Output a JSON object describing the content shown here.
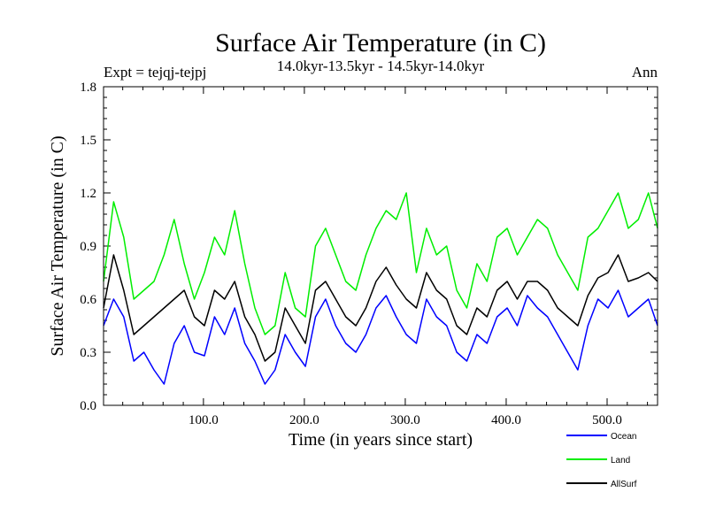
{
  "chart_data": {
    "type": "line",
    "title": "Surface Air Temperature (in C)",
    "subtitle": "14.0kyr-13.5kyr - 14.5kyr-14.0kyr",
    "experiment": "Expt = tejqj-tejpj",
    "period": "Ann",
    "xlabel": "Time (in years since start)",
    "ylabel": "Surface Air Temperature (in C)",
    "xlim": [
      1,
      550
    ],
    "ylim": [
      0.0,
      1.8
    ],
    "x_ticks": [
      100,
      200,
      300,
      400,
      500
    ],
    "x_tick_labels": [
      "100.0",
      "200.0",
      "300.0",
      "400.0",
      "500.0"
    ],
    "y_ticks": [
      0.0,
      0.3,
      0.6,
      0.9,
      1.2,
      1.5,
      1.8
    ],
    "y_tick_labels": [
      "0.0",
      "0.3",
      "0.6",
      "0.9",
      "1.2",
      "1.5",
      "1.8"
    ],
    "x_start": 1,
    "x_step": 10,
    "series": [
      {
        "name": "Ocean",
        "color": "#0000ff",
        "values": [
          0.45,
          0.6,
          0.5,
          0.25,
          0.3,
          0.2,
          0.12,
          0.35,
          0.45,
          0.3,
          0.28,
          0.5,
          0.4,
          0.55,
          0.35,
          0.25,
          0.12,
          0.2,
          0.4,
          0.3,
          0.22,
          0.5,
          0.6,
          0.45,
          0.35,
          0.3,
          0.4,
          0.55,
          0.62,
          0.5,
          0.4,
          0.35,
          0.6,
          0.5,
          0.45,
          0.3,
          0.25,
          0.4,
          0.35,
          0.5,
          0.55,
          0.45,
          0.62,
          0.55,
          0.5,
          0.4,
          0.3,
          0.2,
          0.45,
          0.6,
          0.55,
          0.65,
          0.5,
          0.55,
          0.6,
          0.45
        ]
      },
      {
        "name": "Land",
        "color": "#00ee00",
        "values": [
          0.7,
          1.15,
          0.95,
          0.6,
          0.65,
          0.7,
          0.85,
          1.05,
          0.8,
          0.6,
          0.75,
          0.95,
          0.85,
          1.1,
          0.8,
          0.55,
          0.4,
          0.45,
          0.75,
          0.55,
          0.5,
          0.9,
          1.0,
          0.85,
          0.7,
          0.65,
          0.85,
          1.0,
          1.1,
          1.05,
          1.2,
          0.75,
          1.0,
          0.85,
          0.9,
          0.65,
          0.55,
          0.8,
          0.7,
          0.95,
          1.0,
          0.85,
          0.95,
          1.05,
          1.0,
          0.85,
          0.75,
          0.65,
          0.95,
          1.0,
          1.1,
          1.2,
          1.0,
          1.05,
          1.2,
          1.0
        ]
      },
      {
        "name": "AllSurf",
        "color": "#000000",
        "values": [
          0.55,
          0.85,
          0.65,
          0.4,
          0.45,
          0.5,
          0.55,
          0.6,
          0.65,
          0.5,
          0.45,
          0.65,
          0.6,
          0.7,
          0.5,
          0.4,
          0.25,
          0.3,
          0.55,
          0.45,
          0.35,
          0.65,
          0.7,
          0.6,
          0.5,
          0.45,
          0.55,
          0.7,
          0.78,
          0.68,
          0.6,
          0.55,
          0.75,
          0.65,
          0.6,
          0.45,
          0.4,
          0.55,
          0.5,
          0.65,
          0.7,
          0.6,
          0.7,
          0.7,
          0.65,
          0.55,
          0.5,
          0.45,
          0.62,
          0.72,
          0.75,
          0.85,
          0.7,
          0.72,
          0.75,
          0.7
        ]
      }
    ]
  }
}
